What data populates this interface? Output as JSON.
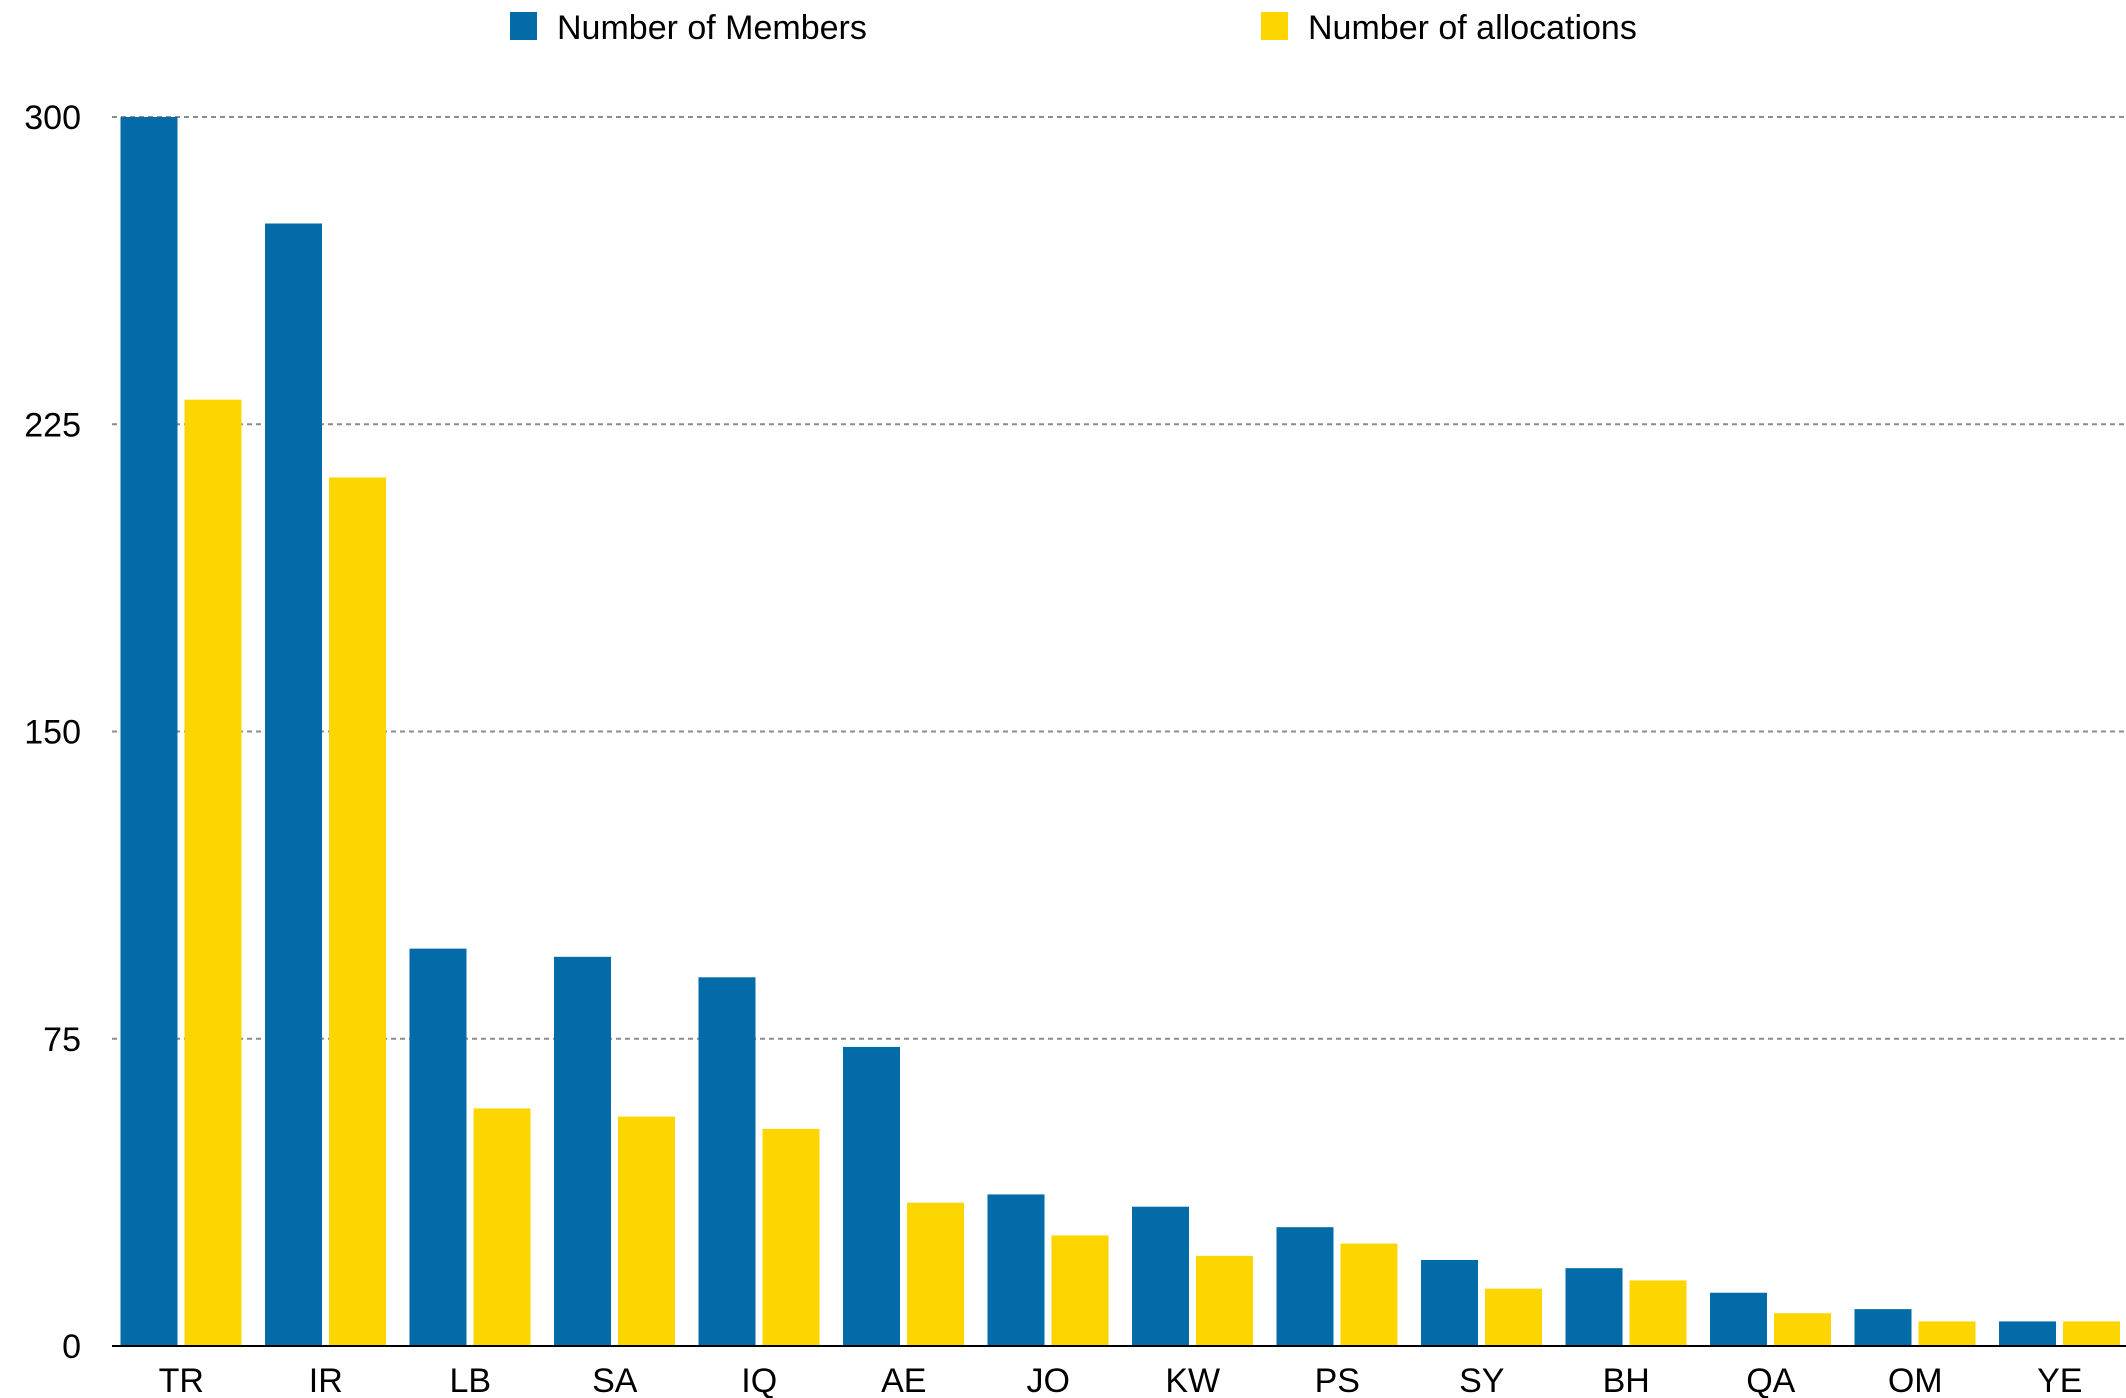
{
  "chart_data": {
    "type": "bar",
    "categories": [
      "TR",
      "IR",
      "LB",
      "SA",
      "IQ",
      "AE",
      "JO",
      "KW",
      "PS",
      "SY",
      "BH",
      "QA",
      "OM",
      "YE"
    ],
    "series": [
      {
        "name": "Number of Members",
        "color": "#036BA7",
        "values": [
          300,
          274,
          97,
          95,
          90,
          73,
          37,
          34,
          29,
          21,
          19,
          13,
          9,
          6
        ]
      },
      {
        "name": "Number of allocations",
        "color": "#FDD500",
        "values": [
          231,
          212,
          58,
          56,
          53,
          35,
          27,
          22,
          25,
          14,
          16,
          8,
          6,
          6
        ]
      }
    ],
    "ylim": [
      0,
      300
    ],
    "yticks": [
      0,
      75,
      150,
      225,
      300
    ],
    "grid": true,
    "legend_position": "top"
  }
}
